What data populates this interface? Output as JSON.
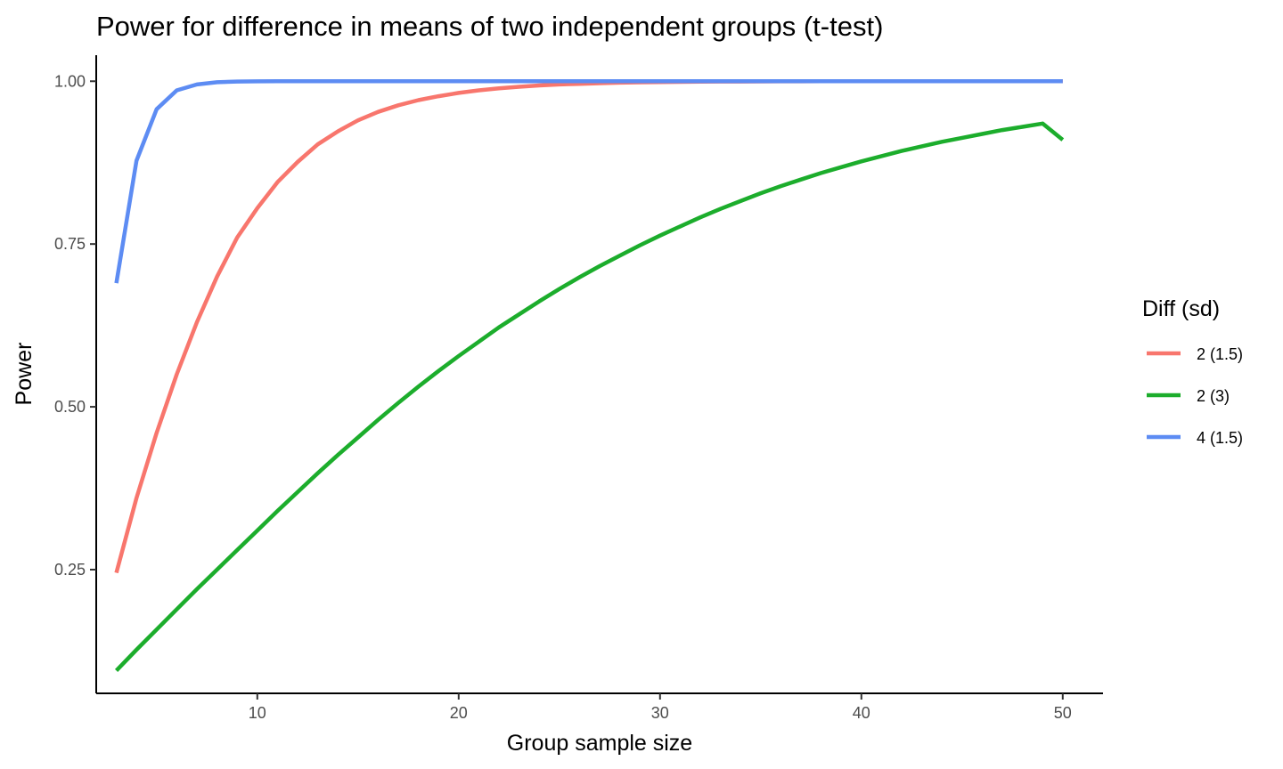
{
  "chart_data": {
    "type": "line",
    "title": "Power for difference in means of two independent groups (t-test)",
    "xlabel": "Group sample size",
    "ylabel": "Power",
    "xlim": [
      2,
      52
    ],
    "ylim": [
      0.06,
      1.04
    ],
    "x_ticks": [
      10,
      20,
      30,
      40,
      50
    ],
    "x_tick_labels": [
      "10",
      "20",
      "30",
      "40",
      "50"
    ],
    "y_ticks": [
      0.25,
      0.5,
      0.75,
      1.0
    ],
    "y_tick_labels": [
      "0.25",
      "0.50",
      "0.75",
      "1.00"
    ],
    "grid": false,
    "legend_title": "Diff (sd)",
    "legend_position": "right",
    "x": [
      3,
      4,
      5,
      6,
      7,
      8,
      9,
      10,
      11,
      12,
      13,
      14,
      15,
      16,
      17,
      18,
      19,
      20,
      21,
      22,
      23,
      24,
      25,
      26,
      27,
      28,
      29,
      30,
      31,
      32,
      33,
      34,
      35,
      36,
      37,
      38,
      39,
      40,
      41,
      42,
      43,
      44,
      45,
      46,
      47,
      48,
      49,
      50
    ],
    "series": [
      {
        "name": "2 (1.5)",
        "color": "#f8766d",
        "values": [
          0.245,
          0.36,
          0.46,
          0.55,
          0.63,
          0.7,
          0.76,
          0.805,
          0.845,
          0.876,
          0.903,
          0.923,
          0.94,
          0.953,
          0.963,
          0.971,
          0.977,
          0.982,
          0.986,
          0.989,
          0.9915,
          0.9935,
          0.995,
          0.996,
          0.997,
          0.9977,
          0.9983,
          0.9987,
          0.999,
          0.9993,
          0.9995,
          0.9996,
          0.9997,
          0.9998,
          0.9998,
          0.9999,
          0.9999,
          0.9999,
          1.0,
          1.0,
          1.0,
          1.0,
          1.0,
          1.0,
          1.0,
          1.0,
          1.0,
          1.0
        ]
      },
      {
        "name": "2 (3)",
        "color": "#1cad2c",
        "values": [
          0.095,
          0.127,
          0.158,
          0.189,
          0.22,
          0.25,
          0.28,
          0.31,
          0.34,
          0.369,
          0.398,
          0.426,
          0.453,
          0.48,
          0.506,
          0.531,
          0.555,
          0.578,
          0.6,
          0.622,
          0.642,
          0.662,
          0.681,
          0.699,
          0.716,
          0.732,
          0.748,
          0.763,
          0.777,
          0.791,
          0.804,
          0.816,
          0.828,
          0.839,
          0.849,
          0.859,
          0.868,
          0.877,
          0.885,
          0.893,
          0.9,
          0.907,
          0.913,
          0.919,
          0.925,
          0.93,
          0.935,
          0.91
        ]
      },
      {
        "name": "4 (1.5)",
        "color": "#5d8cf3",
        "values": [
          0.69,
          0.878,
          0.957,
          0.986,
          0.995,
          0.9985,
          0.9995,
          0.9998,
          0.9999,
          1.0,
          1.0,
          1.0,
          1.0,
          1.0,
          1.0,
          1.0,
          1.0,
          1.0,
          1.0,
          1.0,
          1.0,
          1.0,
          1.0,
          1.0,
          1.0,
          1.0,
          1.0,
          1.0,
          1.0,
          1.0,
          1.0,
          1.0,
          1.0,
          1.0,
          1.0,
          1.0,
          1.0,
          1.0,
          1.0,
          1.0,
          1.0,
          1.0,
          1.0,
          1.0,
          1.0,
          1.0,
          1.0,
          1.0
        ]
      }
    ]
  }
}
